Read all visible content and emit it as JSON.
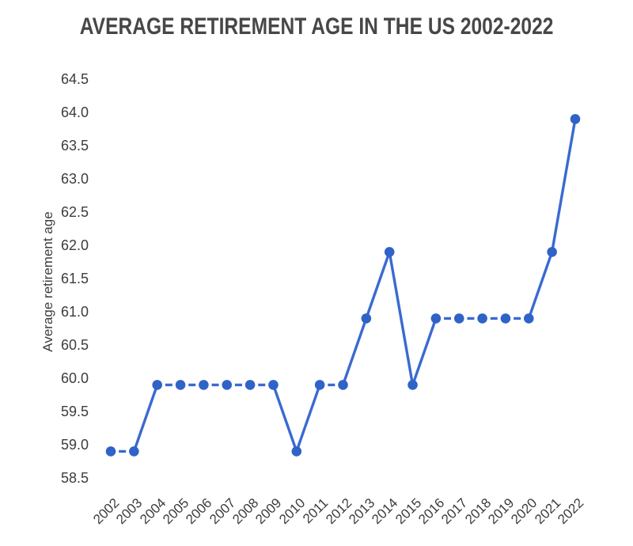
{
  "page": {
    "background": "#ffffff"
  },
  "chart_data": {
    "type": "line",
    "title": "AVERAGE RETIREMENT AGE IN THE US 2002-2022",
    "xlabel": "",
    "ylabel": "Average retirement age",
    "categories": [
      "2002",
      "2003",
      "2004",
      "2005",
      "2006",
      "2007",
      "2008",
      "2009",
      "2010",
      "2011",
      "2012",
      "2013",
      "2014",
      "2015",
      "2016",
      "2017",
      "2018",
      "2019",
      "2020",
      "2021",
      "2022"
    ],
    "series": [
      {
        "name": "Average retirement age",
        "values": [
          58.9,
          58.9,
          59.9,
          59.9,
          59.9,
          59.9,
          59.9,
          59.9,
          58.9,
          59.9,
          59.9,
          60.9,
          61.9,
          59.9,
          60.9,
          60.9,
          60.9,
          60.9,
          60.9,
          61.9,
          63.9
        ]
      }
    ],
    "yticks": [
      58.5,
      59.0,
      59.5,
      60.0,
      60.5,
      61.0,
      61.5,
      62.0,
      62.5,
      63.0,
      63.5,
      64.0,
      64.5
    ],
    "ylim": [
      58.5,
      64.5
    ],
    "grid": false,
    "legend": "none",
    "axis_lines": false,
    "x_tick_rotation_deg": 45,
    "style": {
      "line_color": "#3a6ad1",
      "marker_color": "#2f63c8",
      "marker_shape": "circle",
      "flat_segments": "dashed",
      "sloped_segments": "solid",
      "title_color": "#474747",
      "tick_text_color": "#3c3c3c"
    }
  }
}
